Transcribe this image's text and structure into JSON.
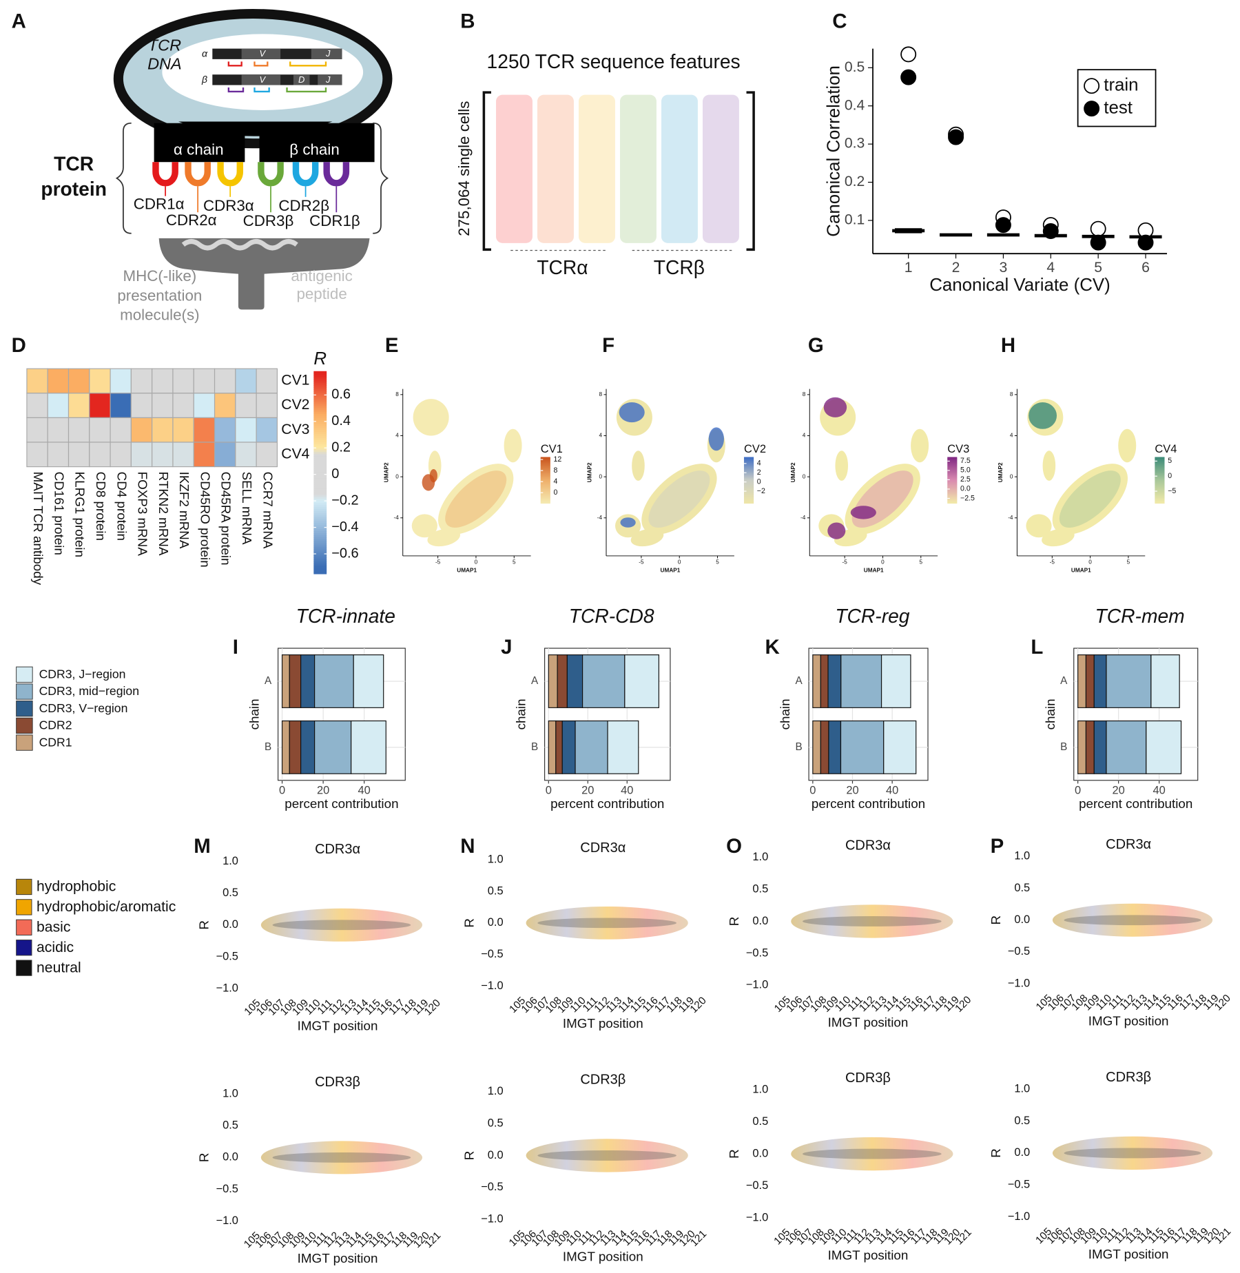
{
  "panel_letters": [
    "A",
    "B",
    "C",
    "D",
    "E",
    "F",
    "G",
    "H",
    "I",
    "J",
    "K",
    "L",
    "M",
    "N",
    "O",
    "P"
  ],
  "diagram_a": {
    "dna_title": [
      "TCR",
      "DNA"
    ],
    "alpha": "α",
    "beta": "β",
    "alpha_genes": [
      "V",
      "J"
    ],
    "beta_genes": [
      "V",
      "D",
      "J"
    ],
    "alpha_chain": "α chain",
    "beta_chain": "β chain",
    "protein_label": [
      "TCR",
      "protein"
    ],
    "cdr_labels": [
      "CDR1α",
      "CDR2α",
      "CDR3α",
      "CDR3β",
      "CDR2β",
      "CDR1β"
    ],
    "mhc_label": [
      "MHC(-like)",
      "presentation",
      "molecule(s)"
    ],
    "peptide_label": [
      "antigenic",
      "peptide"
    ]
  },
  "diagram_b": {
    "title": "1250 TCR sequence features",
    "rows_label": "275,064 single cells",
    "groups": [
      "TCRα",
      "TCRβ"
    ]
  },
  "region_legend": {
    "names": [
      "CDR3, J−region",
      "CDR3, mid−region",
      "CDR3, V−region",
      "CDR2",
      "CDR1"
    ],
    "colors": [
      "#d6ecf3",
      "#8fb4cc",
      "#2f5e8b",
      "#8a4a33",
      "#c9a27b"
    ]
  },
  "aa_legend": {
    "names": [
      "hydrophobic",
      "hydrophobic/aromatic",
      "basic",
      "acidic",
      "neutral"
    ],
    "colors": [
      "#b8860b",
      "#f0a500",
      "#f26b57",
      "#15158a",
      "#111111"
    ]
  },
  "chart_data": [
    {
      "type": "scatter",
      "xlabel": "Canonical Variate (CV)",
      "ylabel": "Canonical Correlation",
      "x": [
        1,
        2,
        3,
        4,
        5,
        6
      ],
      "xlim": [
        0.25,
        6.45
      ],
      "ylim": [
        0.013,
        0.55
      ],
      "xticks": [
        1,
        2,
        3,
        4,
        5,
        6
      ],
      "yticks": [
        0.1,
        0.2,
        0.3,
        0.4,
        0.5
      ],
      "legend": "top-right",
      "series": [
        {
          "name": "train",
          "marker": "open",
          "color": "#000000",
          "values": [
            0.535,
            0.325,
            0.108,
            0.088,
            0.078,
            0.074
          ]
        },
        {
          "name": "test",
          "marker": "filled",
          "color": "#000000",
          "values": [
            0.475,
            0.318,
            0.088,
            0.072,
            0.042,
            0.042
          ]
        }
      ],
      "null_threshold": {
        "values": [
          0.073,
          0.062,
          0.062,
          0.06,
          0.058,
          0.057
        ],
        "errors": [
          0.005,
          0,
          0,
          0,
          0,
          0
        ]
      }
    },
    {
      "type": "heatmap",
      "rows": [
        "CV1",
        "CV2",
        "CV3",
        "CV4"
      ],
      "columns": [
        "MAIT TCR antibody",
        "CD161 protein",
        "KLRG1 protein",
        "CD8 protein",
        "CD4 protein",
        "FOXP3 mRNA",
        "RTKN2 mRNA",
        "IKZF2 mRNA",
        "CD45RO protein",
        "CD45RA protein",
        "SELL mRNA",
        "CCR7 mRNA"
      ],
      "values": [
        [
          0.3,
          0.45,
          0.45,
          0.25,
          -0.2,
          0,
          0,
          0,
          0,
          0,
          -0.3,
          0
        ],
        [
          0,
          -0.2,
          0.25,
          0.75,
          -0.7,
          0,
          0,
          0,
          -0.2,
          0.35,
          0,
          0
        ],
        [
          0,
          0,
          0,
          0,
          0,
          0.4,
          0.3,
          0.3,
          0.55,
          -0.4,
          -0.2,
          -0.35
        ],
        [
          0,
          0,
          0,
          0,
          0,
          -0.17,
          -0.17,
          -0.17,
          0.55,
          -0.45,
          -0.17,
          -0.12
        ]
      ],
      "colorbar": {
        "title": "R",
        "lim": [
          -0.75,
          0.78
        ],
        "ticks": [
          0.6,
          0.4,
          0.2,
          0,
          {
            "value": -0.2,
            "label": "−0.2"
          },
          {
            "value": -0.4,
            "label": "−0.4"
          },
          {
            "value": -0.6,
            "label": "−0.6"
          }
        ],
        "colormap": [
          [
            -0.7,
            "#3a6db5"
          ],
          [
            -0.2,
            "#d3ecf5"
          ],
          [
            -0.15,
            "#d9d9d9"
          ],
          [
            0.15,
            "#d9d9d9"
          ],
          [
            0.2,
            "#fde8a0"
          ],
          [
            0.45,
            "#fbad62"
          ],
          [
            0.75,
            "#e3261f"
          ]
        ]
      }
    },
    {
      "type": "umap",
      "xlabel": "UMAP1",
      "ylabel": "UMAP2",
      "xlim": [
        -9.6,
        7.2
      ],
      "ylim": [
        -7.7,
        8.55
      ],
      "xticks": [
        {
          "value": -5,
          "label": "-5"
        },
        0,
        5
      ],
      "yticks": [
        {
          "value": -4,
          "label": "-4"
        },
        0,
        4,
        8
      ],
      "colorbar": {
        "title": "CV1",
        "lim": [
          -3.8,
          12.9
        ],
        "ticks": [
          0,
          4,
          8,
          12
        ],
        "colors": [
          "#f5ebb2",
          "#eeae6a",
          "#c9531c"
        ]
      }
    },
    {
      "type": "umap",
      "xlabel": "UMAP1",
      "ylabel": "UMAP2",
      "xlim": [
        -9.6,
        7.2
      ],
      "ylim": [
        -7.7,
        8.55
      ],
      "xticks": [
        {
          "value": -5,
          "label": "-5"
        },
        0,
        5
      ],
      "yticks": [
        {
          "value": -4,
          "label": "-4"
        },
        0,
        4,
        8
      ],
      "colorbar": {
        "title": "CV2",
        "lim": [
          -4.6,
          5.4
        ],
        "ticks": [
          {
            "value": -2,
            "label": "−2"
          },
          0,
          2,
          4
        ],
        "colors": [
          "#efe6a8",
          "#c9cdc6",
          "#3e6dc4"
        ]
      }
    },
    {
      "type": "umap",
      "xlabel": "UMAP1",
      "ylabel": "UMAP2",
      "xlim": [
        -9.6,
        7.2
      ],
      "ylim": [
        -7.7,
        8.55
      ],
      "xticks": [
        {
          "value": -5,
          "label": "-5"
        },
        0,
        5
      ],
      "yticks": [
        {
          "value": -4,
          "label": "-4"
        },
        0,
        4,
        8
      ],
      "colorbar": {
        "title": "CV3",
        "lim": [
          -3.8,
          8.6
        ],
        "ticks": [
          {
            "value": -2.5,
            "label": "−2.5"
          },
          {
            "value": 0,
            "label": "0.0"
          },
          2.5,
          {
            "value": 5,
            "label": "5.0"
          },
          7.5
        ],
        "colors": [
          "#f2eaa8",
          "#d98ab0",
          "#7f2683"
        ]
      }
    },
    {
      "type": "umap",
      "xlabel": "UMAP1",
      "ylabel": "UMAP2",
      "xlim": [
        -9.6,
        7.2
      ],
      "ylim": [
        -7.7,
        8.55
      ],
      "xticks": [
        {
          "value": -5,
          "label": "-5"
        },
        0,
        5
      ],
      "yticks": [
        {
          "value": -4,
          "label": "-4"
        },
        0,
        4,
        8
      ],
      "colorbar": {
        "title": "CV4",
        "lim": [
          -9,
          6.35
        ],
        "ticks": [
          {
            "value": -5,
            "label": "−5"
          },
          0,
          5
        ],
        "colors": [
          "#f2eaa8",
          "#a8c79a",
          "#3a8a78"
        ]
      }
    },
    {
      "type": "stacked_barh",
      "title": "TCR-innate",
      "ylabel": "chain",
      "xlabel": "percent contribution",
      "categories": [
        "A",
        "B"
      ],
      "xlim": [
        -2,
        60
      ],
      "xticks": [
        0,
        20,
        40
      ],
      "values": [
        [
          14.6,
          19,
          6.7,
          5.5,
          3.6
        ],
        [
          17,
          17.8,
          6.7,
          5.5,
          3.6
        ]
      ]
    },
    {
      "type": "stacked_barh",
      "title": "TCR-CD8",
      "ylabel": "chain",
      "xlabel": "percent contribution",
      "categories": [
        "A",
        "B"
      ],
      "xlim": [
        -2,
        62
      ],
      "xticks": [
        0,
        20,
        40
      ],
      "values": [
        [
          17.4,
          21.5,
          7.8,
          5,
          4.5
        ],
        [
          15.7,
          16.5,
          6.6,
          3.3,
          3.7
        ]
      ]
    },
    {
      "type": "stacked_barh",
      "title": "TCR-reg",
      "ylabel": "chain",
      "xlabel": "percent contribution",
      "categories": [
        "A",
        "B"
      ],
      "xlim": [
        -2,
        58
      ],
      "xticks": [
        0,
        20,
        40
      ],
      "values": [
        [
          14.7,
          20.4,
          6.5,
          3.7,
          4
        ],
        [
          16.3,
          21.6,
          6.1,
          4,
          4
        ]
      ]
    },
    {
      "type": "stacked_barh",
      "title": "TCR-mem",
      "ylabel": "chain",
      "xlabel": "percent contribution",
      "categories": [
        "A",
        "B"
      ],
      "xlim": [
        -2,
        59
      ],
      "xticks": [
        0,
        20,
        40
      ],
      "values": [
        [
          14,
          22,
          6,
          4,
          4
        ],
        [
          17.2,
          19.6,
          6,
          4,
          4
        ]
      ]
    },
    {
      "type": "logo",
      "title": "CDR3α",
      "ylabel": "R",
      "xlabel": "IMGT position",
      "xlim": [
        104.5,
        120.5
      ],
      "ylim": [
        -1,
        1
      ],
      "yticks": [
        {
          "value": 1,
          "label": "1.0"
        },
        0.5,
        {
          "value": 0,
          "label": "0.0"
        },
        {
          "value": -0.5,
          "label": "−0.5"
        },
        {
          "value": -1,
          "label": "−1.0"
        }
      ],
      "xticks": [
        105,
        106,
        107,
        108,
        109,
        110,
        111,
        112,
        113,
        114,
        115,
        116,
        117,
        118,
        119,
        120
      ]
    },
    {
      "type": "logo",
      "title": "CDR3α",
      "ylabel": "R",
      "xlabel": "IMGT position",
      "xlim": [
        104.5,
        120.5
      ],
      "ylim": [
        -1,
        1
      ],
      "yticks": [
        {
          "value": 1,
          "label": "1.0"
        },
        0.5,
        {
          "value": 0,
          "label": "0.0"
        },
        {
          "value": -0.5,
          "label": "−0.5"
        },
        {
          "value": -1,
          "label": "−1.0"
        }
      ],
      "xticks": [
        105,
        106,
        107,
        108,
        109,
        110,
        111,
        112,
        113,
        114,
        115,
        116,
        117,
        118,
        119,
        120
      ]
    },
    {
      "type": "logo",
      "title": "CDR3α",
      "ylabel": "R",
      "xlabel": "IMGT position",
      "xlim": [
        104.5,
        120.5
      ],
      "ylim": [
        -1,
        1
      ],
      "yticks": [
        {
          "value": 1,
          "label": "1.0"
        },
        0.5,
        {
          "value": 0,
          "label": "0.0"
        },
        {
          "value": -0.5,
          "label": "−0.5"
        },
        {
          "value": -1,
          "label": "−1.0"
        }
      ],
      "xticks": [
        105,
        106,
        107,
        108,
        109,
        110,
        111,
        112,
        113,
        114,
        115,
        116,
        117,
        118,
        119,
        120
      ]
    },
    {
      "type": "logo",
      "title": "CDR3α",
      "ylabel": "R",
      "xlabel": "IMGT position",
      "xlim": [
        104.5,
        120.5
      ],
      "ylim": [
        -1,
        1
      ],
      "yticks": [
        {
          "value": 1,
          "label": "1.0"
        },
        0.5,
        {
          "value": 0,
          "label": "0.0"
        },
        {
          "value": -0.5,
          "label": "−0.5"
        },
        {
          "value": -1,
          "label": "−1.0"
        }
      ],
      "xticks": [
        105,
        106,
        107,
        108,
        109,
        110,
        111,
        112,
        113,
        114,
        115,
        116,
        117,
        118,
        119,
        120
      ]
    },
    {
      "type": "logo",
      "title": "CDR3β",
      "ylabel": "R",
      "xlabel": "IMGT position",
      "xlim": [
        104.5,
        121.5
      ],
      "ylim": [
        -1,
        1
      ],
      "yticks": [
        {
          "value": 1,
          "label": "1.0"
        },
        0.5,
        {
          "value": 0,
          "label": "0.0"
        },
        {
          "value": -0.5,
          "label": "−0.5"
        },
        {
          "value": -1,
          "label": "−1.0"
        }
      ],
      "xticks": [
        105,
        106,
        107,
        108,
        109,
        110,
        111,
        112,
        113,
        114,
        115,
        116,
        117,
        118,
        119,
        120,
        121
      ]
    },
    {
      "type": "logo",
      "title": "CDR3β",
      "ylabel": "R",
      "xlabel": "IMGT position",
      "xlim": [
        104.5,
        121.5
      ],
      "ylim": [
        -1,
        1
      ],
      "yticks": [
        {
          "value": 1,
          "label": "1.0"
        },
        0.5,
        {
          "value": 0,
          "label": "0.0"
        },
        {
          "value": -0.5,
          "label": "−0.5"
        },
        {
          "value": -1,
          "label": "−1.0"
        }
      ],
      "xticks": [
        105,
        106,
        107,
        108,
        109,
        110,
        111,
        112,
        113,
        114,
        115,
        116,
        117,
        118,
        119,
        120,
        121
      ]
    },
    {
      "type": "logo",
      "title": "CDR3β",
      "ylabel": "R",
      "xlabel": "IMGT position",
      "xlim": [
        104.5,
        121.5
      ],
      "ylim": [
        -1,
        1
      ],
      "yticks": [
        {
          "value": 1,
          "label": "1.0"
        },
        0.5,
        {
          "value": 0,
          "label": "0.0"
        },
        {
          "value": -0.5,
          "label": "−0.5"
        },
        {
          "value": -1,
          "label": "−1.0"
        }
      ],
      "xticks": [
        105,
        106,
        107,
        108,
        109,
        110,
        111,
        112,
        113,
        114,
        115,
        116,
        117,
        118,
        119,
        120,
        121
      ]
    },
    {
      "type": "logo",
      "title": "CDR3β",
      "ylabel": "R",
      "xlabel": "IMGT position",
      "xlim": [
        104.5,
        121.5
      ],
      "ylim": [
        -1,
        1
      ],
      "yticks": [
        {
          "value": 1,
          "label": "1.0"
        },
        0.5,
        {
          "value": 0,
          "label": "0.0"
        },
        {
          "value": -0.5,
          "label": "−0.5"
        },
        {
          "value": -1,
          "label": "−1.0"
        }
      ],
      "xticks": [
        105,
        106,
        107,
        108,
        109,
        110,
        111,
        112,
        113,
        114,
        115,
        116,
        117,
        118,
        119,
        120,
        121
      ]
    }
  ]
}
